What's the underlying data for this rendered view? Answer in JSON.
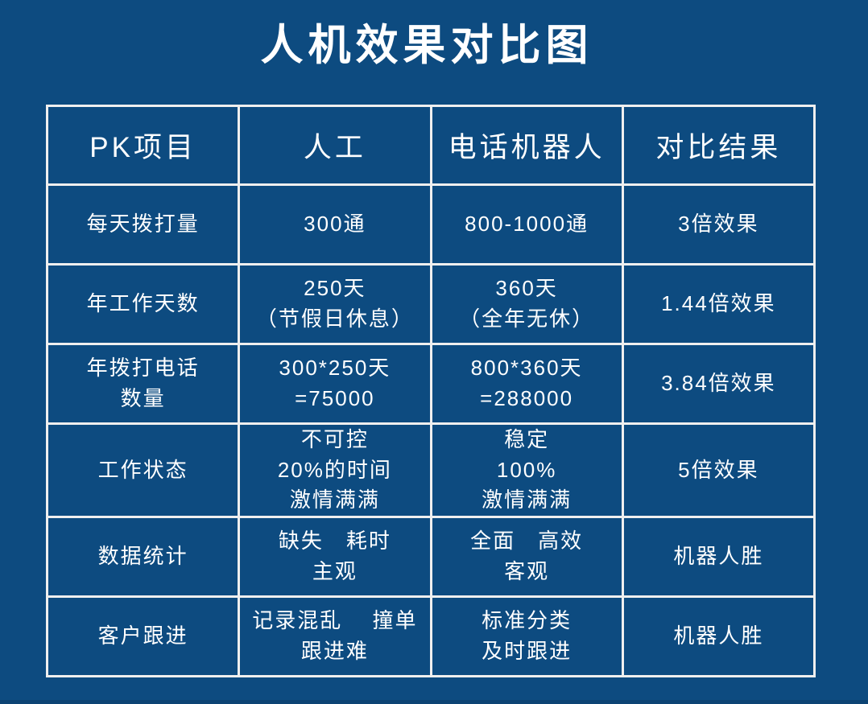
{
  "page": {
    "background_color": "#0D4B80",
    "text_color": "#FFFFFF",
    "table_border_color": "#EFEFEF",
    "bottom_strip_color": "#0D4373"
  },
  "chart_data": {
    "type": "table",
    "title": "人机效果对比图",
    "columns": [
      "PK项目",
      "人工",
      "电话机器人",
      "对比结果"
    ],
    "rows": [
      [
        "每天拨打量",
        "300通",
        "800-1000通",
        "3倍效果"
      ],
      [
        "年工作天数",
        "250天\n（节假日休息）",
        "360天\n（全年无休）",
        "1.44倍效果"
      ],
      [
        "年拨打电话\n数量",
        "300*250天\n=75000",
        "800*360天\n=288000",
        "3.84倍效果"
      ],
      [
        "工作状态",
        "不可控\n20%的时间\n激情满满",
        "稳定\n100%\n激情满满",
        "5倍效果"
      ],
      [
        "数据统计",
        "缺失　耗时\n主观",
        "全面　高效\n客观",
        "机器人胜"
      ],
      [
        "客户跟进",
        "记录混乱　 撞单\n跟进难",
        "标准分类\n及时跟进",
        "机器人胜"
      ]
    ],
    "layout": {
      "columns_equal_width": true,
      "grid": "white 3px borders, all cells",
      "header_position": "top row"
    }
  }
}
